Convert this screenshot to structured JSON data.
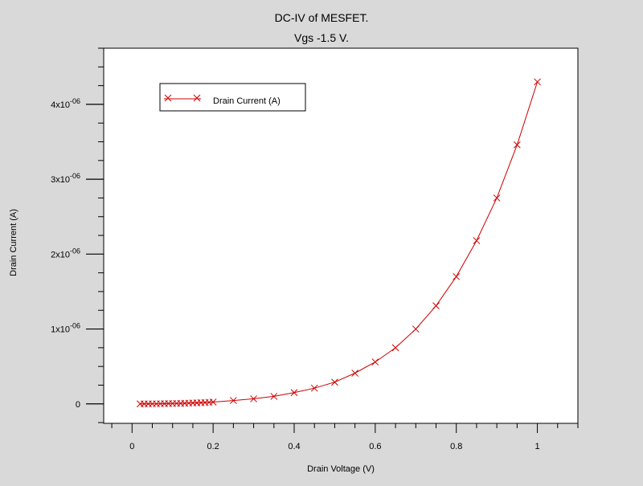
{
  "chart_data": {
    "type": "line",
    "title": "DC-IV of MESFET.",
    "subtitle": "Vgs -1.5 V.",
    "xlabel": "Drain Voltage (V)",
    "ylabel": "Drain Current (A)",
    "xlim": [
      -0.07,
      1.1
    ],
    "ylim": [
      -2.6e-07,
      4.75e-06
    ],
    "x_ticks": [
      {
        "value": 0,
        "label": "0"
      },
      {
        "value": 0.2,
        "label": "0.2"
      },
      {
        "value": 0.4,
        "label": "0.4"
      },
      {
        "value": 0.6,
        "label": "0.6"
      },
      {
        "value": 0.8,
        "label": "0.8"
      },
      {
        "value": 1,
        "label": "1"
      }
    ],
    "y_ticks": [
      {
        "value": 0,
        "label": "0",
        "exp": ""
      },
      {
        "value": 1e-06,
        "label": "1x10",
        "exp": "-06"
      },
      {
        "value": 2e-06,
        "label": "2x10",
        "exp": "-06"
      },
      {
        "value": 3e-06,
        "label": "3x10",
        "exp": "-06"
      },
      {
        "value": 4e-06,
        "label": "4x10",
        "exp": "-06"
      }
    ],
    "legend_placement": "top-left",
    "grid": false,
    "series": [
      {
        "name": "Drain Current (A)",
        "color": "#cc0000",
        "marker": "x",
        "x": [
          0.02,
          0.03,
          0.04,
          0.05,
          0.06,
          0.07,
          0.08,
          0.09,
          0.1,
          0.11,
          0.12,
          0.13,
          0.14,
          0.15,
          0.16,
          0.17,
          0.18,
          0.19,
          0.2,
          0.25,
          0.3,
          0.35,
          0.4,
          0.45,
          0.5,
          0.55,
          0.6,
          0.65,
          0.7,
          0.75,
          0.8,
          0.85,
          0.9,
          0.95,
          1.0
        ],
        "y": [
          0,
          0,
          0,
          1e-09,
          1e-09,
          2e-09,
          3e-09,
          4e-09,
          5e-09,
          6e-09,
          7e-09,
          8e-09,
          1e-08,
          1.2e-08,
          1.4e-08,
          1.6e-08,
          1.8e-08,
          2.1e-08,
          2.4e-08,
          4.5e-08,
          6.8e-08,
          1e-07,
          1.5e-07,
          2.1e-07,
          2.9e-07,
          4.1e-07,
          5.6e-07,
          7.5e-07,
          1e-06,
          1.31e-06,
          1.7e-06,
          2.18e-06,
          2.75e-06,
          3.46e-06,
          4.3e-06
        ]
      }
    ]
  }
}
